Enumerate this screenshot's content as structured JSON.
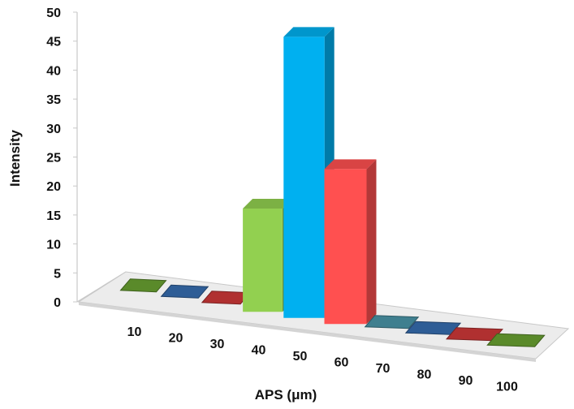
{
  "chart_data": {
    "type": "bar",
    "style": "3d",
    "title": "",
    "xlabel": "APS (μm)",
    "ylabel": "Intensity",
    "ylim": [
      0,
      50
    ],
    "yticks": [
      "0",
      "5",
      "10",
      "15",
      "20",
      "25",
      "30",
      "35",
      "40",
      "45",
      "50"
    ],
    "categories": [
      "10",
      "20",
      "30",
      "40",
      "50",
      "60",
      "70",
      "80",
      "90",
      "100"
    ],
    "values": [
      0,
      0,
      0,
      18,
      49,
      27,
      0,
      0,
      0,
      0
    ],
    "colors": [
      "#5a8a2a",
      "#2e5d96",
      "#b03030",
      "#92d050",
      "#00b0f0",
      "#ff5050",
      "#3f7f8f",
      "#2e5d96",
      "#b03030",
      "#5a8a2a"
    ],
    "grid": false,
    "legend": "none"
  }
}
